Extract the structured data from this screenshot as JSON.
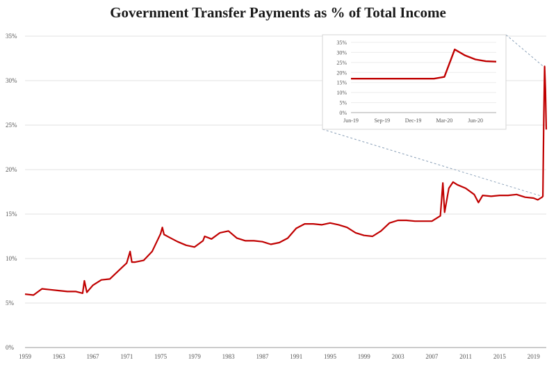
{
  "chart_data": {
    "type": "line",
    "title": "Government Transfer Payments as % of  Total Income",
    "xlabel": "",
    "ylabel": "",
    "ylim": [
      0,
      35
    ],
    "yticks": [
      "0%",
      "5%",
      "10%",
      "15%",
      "20%",
      "25%",
      "30%",
      "35%"
    ],
    "xticks": [
      "1959",
      "1963",
      "1967",
      "1971",
      "1975",
      "1979",
      "1983",
      "1987",
      "1991",
      "1995",
      "1999",
      "2003",
      "2007",
      "2011",
      "2015",
      "2019"
    ],
    "xlim": [
      1959,
      2020.5
    ],
    "grid": "horizontal",
    "line_color": "#c00000",
    "series": [
      {
        "values": [
          [
            1959,
            6.0
          ],
          [
            1960,
            5.9
          ],
          [
            1961,
            6.6
          ],
          [
            1962,
            6.5
          ],
          [
            1963,
            6.4
          ],
          [
            1964,
            6.3
          ],
          [
            1965,
            6.3
          ],
          [
            1965.8,
            6.1
          ],
          [
            1966,
            7.5
          ],
          [
            1966.3,
            6.2
          ],
          [
            1967,
            7.0
          ],
          [
            1968,
            7.6
          ],
          [
            1969,
            7.7
          ],
          [
            1970,
            8.6
          ],
          [
            1971,
            9.5
          ],
          [
            1971.4,
            10.8
          ],
          [
            1971.6,
            9.6
          ],
          [
            1972,
            9.6
          ],
          [
            1973,
            9.8
          ],
          [
            1974,
            10.8
          ],
          [
            1975,
            12.8
          ],
          [
            1975.2,
            13.5
          ],
          [
            1975.4,
            12.7
          ],
          [
            1976,
            12.4
          ],
          [
            1977,
            11.9
          ],
          [
            1978,
            11.5
          ],
          [
            1979,
            11.3
          ],
          [
            1980,
            12.0
          ],
          [
            1980.2,
            12.5
          ],
          [
            1981,
            12.2
          ],
          [
            1982,
            12.9
          ],
          [
            1983,
            13.1
          ],
          [
            1984,
            12.3
          ],
          [
            1985,
            12.0
          ],
          [
            1986,
            12.0
          ],
          [
            1987,
            11.9
          ],
          [
            1988,
            11.6
          ],
          [
            1989,
            11.8
          ],
          [
            1990,
            12.3
          ],
          [
            1991,
            13.4
          ],
          [
            1992,
            13.9
          ],
          [
            1993,
            13.9
          ],
          [
            1994,
            13.8
          ],
          [
            1995,
            14.0
          ],
          [
            1996,
            13.8
          ],
          [
            1997,
            13.5
          ],
          [
            1998,
            12.9
          ],
          [
            1999,
            12.6
          ],
          [
            2000,
            12.5
          ],
          [
            2001,
            13.1
          ],
          [
            2002,
            14.0
          ],
          [
            2003,
            14.3
          ],
          [
            2004,
            14.3
          ],
          [
            2005,
            14.2
          ],
          [
            2006,
            14.2
          ],
          [
            2007,
            14.2
          ],
          [
            2008,
            14.8
          ],
          [
            2008.3,
            18.5
          ],
          [
            2008.5,
            15.2
          ],
          [
            2009,
            17.9
          ],
          [
            2009.5,
            18.6
          ],
          [
            2010,
            18.3
          ],
          [
            2011,
            17.9
          ],
          [
            2012,
            17.2
          ],
          [
            2012.5,
            16.3
          ],
          [
            2013,
            17.1
          ],
          [
            2014,
            17.0
          ],
          [
            2015,
            17.1
          ],
          [
            2016,
            17.1
          ],
          [
            2017,
            17.2
          ],
          [
            2018,
            16.9
          ],
          [
            2019,
            16.8
          ],
          [
            2019.5,
            16.6
          ],
          [
            2020.0,
            16.9
          ],
          [
            2020.1,
            17.0
          ],
          [
            2020.2,
            25.0
          ],
          [
            2020.3,
            31.6
          ],
          [
            2020.4,
            29.0
          ],
          [
            2020.5,
            24.5
          ]
        ]
      }
    ],
    "inset": {
      "type": "line",
      "ylim": [
        0,
        35
      ],
      "yticks": [
        "0%",
        "5%",
        "10%",
        "15%",
        "20%",
        "25%",
        "30%",
        "35%"
      ],
      "xticks": [
        "Jun-19",
        "Sep-19",
        "Dec-19",
        "Mar-20",
        "Jun-20"
      ],
      "series": [
        {
          "values": [
            [
              0,
              16.9
            ],
            [
              1,
              16.9
            ],
            [
              2,
              16.9
            ],
            [
              3,
              16.9
            ],
            [
              4,
              16.9
            ],
            [
              5,
              16.9
            ],
            [
              6,
              16.9
            ],
            [
              7,
              16.9
            ],
            [
              8,
              16.9
            ],
            [
              9,
              17.8
            ],
            [
              10,
              31.5
            ],
            [
              11,
              28.5
            ],
            [
              12,
              26.5
            ],
            [
              13,
              25.6
            ],
            [
              14,
              25.4
            ]
          ]
        }
      ]
    }
  }
}
